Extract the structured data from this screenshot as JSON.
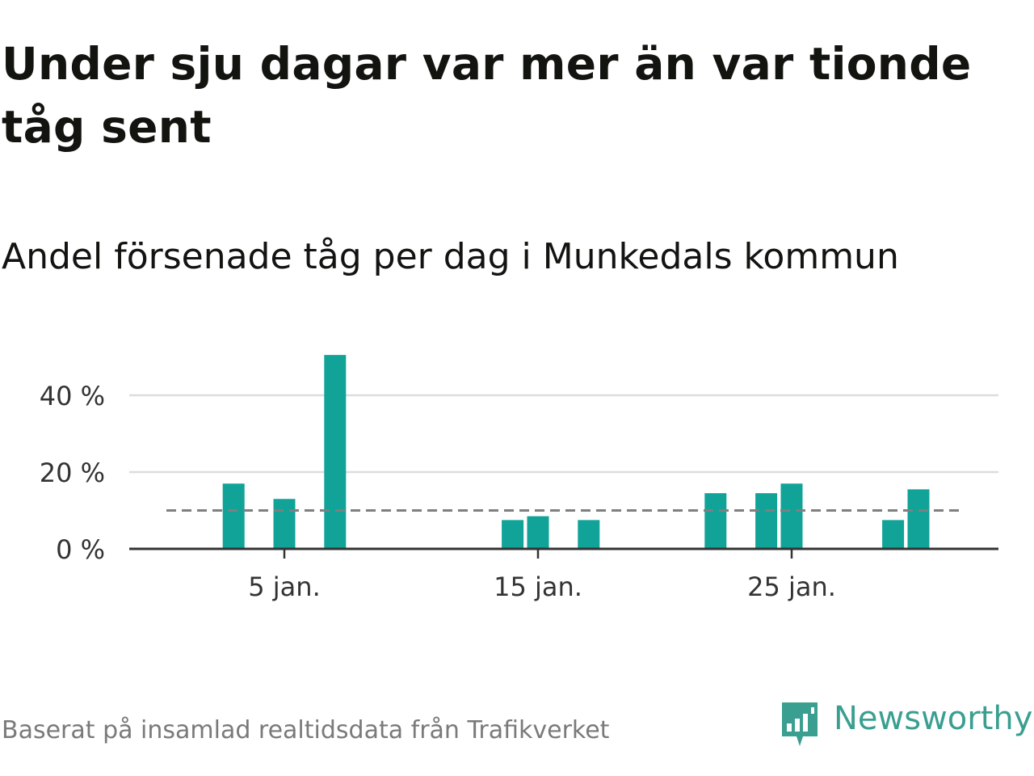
{
  "title": "Under sju dagar var mer än var tionde tåg sent",
  "subtitle": "Andel försenade tåg per dag i Munkedals kommun",
  "source": "Baserat på insamlad realtidsdata från Trafikverket",
  "brand": {
    "name": "Newsworthy",
    "icon": "newsworthy-logo-icon",
    "color": "#3a9f90"
  },
  "colors": {
    "bar": "#11a398",
    "grid": "#dddddd",
    "axis": "#333333",
    "reference": "#7f7f7f"
  },
  "chart_data": {
    "type": "bar",
    "x_unit": "day in January",
    "x": [
      1,
      2,
      3,
      4,
      5,
      6,
      7,
      8,
      9,
      10,
      11,
      12,
      13,
      14,
      15,
      16,
      17,
      18,
      19,
      20,
      21,
      22,
      23,
      24,
      25,
      26,
      27,
      28,
      29,
      30,
      31
    ],
    "values": [
      null,
      null,
      17,
      null,
      13,
      null,
      50.5,
      null,
      null,
      null,
      null,
      null,
      null,
      7.5,
      8.5,
      null,
      7.5,
      null,
      null,
      null,
      null,
      14.5,
      null,
      14.5,
      17,
      null,
      null,
      null,
      7.5,
      15.5,
      null
    ],
    "xticks": [
      5,
      15,
      25
    ],
    "xtick_labels": [
      "5 jan.",
      "15 jan.",
      "25 jan."
    ],
    "yticks": [
      0,
      20,
      40
    ],
    "ytick_labels": [
      "0 %",
      "20 %",
      "40 %"
    ],
    "ylim": [
      0,
      52
    ],
    "reference_line": 10,
    "grid": true,
    "legend": "none"
  }
}
